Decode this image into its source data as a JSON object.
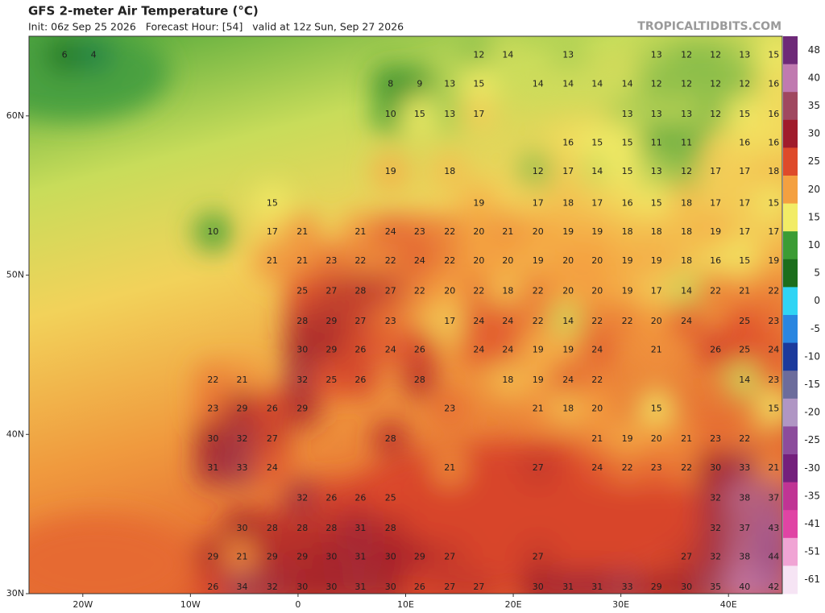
{
  "header": {
    "title": "GFS 2-meter Air Temperature (°C)",
    "subtitle": "Init: 06z Sep 25 2026   Forecast Hour: [54]   valid at 12z Sun, Sep 27 2026",
    "watermark": "TROPICALTIDBITS.COM"
  },
  "chart_data": {
    "type": "map",
    "xlim": [
      -25,
      45
    ],
    "ylim": [
      30,
      65
    ],
    "xticks": [
      {
        "value": -20,
        "label": "20W"
      },
      {
        "value": -10,
        "label": "10W"
      },
      0,
      {
        "value": 10,
        "label": "10E"
      },
      {
        "value": 20,
        "label": "20E"
      },
      {
        "value": 30,
        "label": "30E"
      },
      {
        "value": 40,
        "label": "40E"
      }
    ],
    "yticks": [
      {
        "value": 60,
        "label": "60N"
      },
      {
        "value": 50,
        "label": "50N"
      },
      {
        "value": 40,
        "label": "40N"
      },
      {
        "value": 30,
        "label": "30N"
      }
    ],
    "rows": [
      {
        "lat": 63.8,
        "lon": [
          -21.7,
          -19.0,
          16.8,
          19.5,
          25.1,
          33.3,
          36.1,
          38.8,
          41.5,
          44.2
        ],
        "values": [
          6,
          4,
          12,
          14,
          13,
          13,
          12,
          12,
          13,
          15
        ]
      },
      {
        "lat": 62.0,
        "lon": [
          8.6,
          11.3,
          14.1,
          16.8,
          22.3,
          25.1,
          27.8,
          30.6,
          33.3,
          36.1,
          38.8,
          41.5,
          44.2
        ],
        "values": [
          8,
          9,
          13,
          15,
          14,
          14,
          14,
          14,
          12,
          12,
          12,
          12,
          16
        ]
      },
      {
        "lat": 60.1,
        "lon": [
          8.6,
          11.3,
          14.1,
          16.8,
          30.6,
          33.3,
          36.1,
          38.8,
          41.5,
          44.2
        ],
        "values": [
          10,
          15,
          13,
          17,
          13,
          13,
          13,
          12,
          15,
          16
        ]
      },
      {
        "lat": 58.3,
        "lon": [
          25.1,
          27.8,
          30.6,
          33.3,
          36.1,
          41.5,
          44.2
        ],
        "values": [
          16,
          15,
          15,
          11,
          11,
          16,
          16
        ]
      },
      {
        "lat": 56.5,
        "lon": [
          8.6,
          14.1,
          22.3,
          25.1,
          27.8,
          30.6,
          33.3,
          36.1,
          38.8,
          41.5,
          44.2
        ],
        "values": [
          19,
          18,
          12,
          17,
          14,
          15,
          13,
          12,
          17,
          17,
          18
        ]
      },
      {
        "lat": 54.5,
        "lon": [
          -2.4,
          16.8,
          22.3,
          25.1,
          27.8,
          30.6,
          33.3,
          36.1,
          38.8,
          41.5,
          44.2
        ],
        "values": [
          15,
          19,
          17,
          18,
          17,
          16,
          15,
          18,
          17,
          17,
          15
        ]
      },
      {
        "lat": 52.7,
        "lon": [
          -7.9,
          -2.4,
          0.4,
          5.8,
          8.6,
          11.3,
          14.1,
          16.8,
          19.5,
          22.3,
          25.1,
          27.8,
          30.6,
          33.3,
          36.1,
          38.8,
          41.5,
          44.2
        ],
        "values": [
          10,
          17,
          21,
          21,
          24,
          23,
          22,
          20,
          21,
          20,
          19,
          19,
          18,
          18,
          18,
          19,
          17,
          17
        ]
      },
      {
        "lat": 50.9,
        "lon": [
          -2.4,
          0.4,
          3.1,
          5.8,
          8.6,
          11.3,
          14.1,
          16.8,
          19.5,
          22.3,
          25.1,
          27.8,
          30.6,
          33.3,
          36.1,
          38.8,
          41.5,
          44.2
        ],
        "values": [
          21,
          21,
          23,
          22,
          22,
          24,
          22,
          20,
          20,
          19,
          20,
          20,
          19,
          19,
          18,
          16,
          15,
          19
        ]
      },
      {
        "lat": 49.0,
        "lon": [
          0.4,
          3.1,
          5.8,
          8.6,
          11.3,
          14.1,
          16.8,
          19.5,
          22.3,
          25.1,
          27.8,
          30.6,
          33.3,
          36.1,
          38.8,
          41.5,
          44.2
        ],
        "values": [
          25,
          27,
          28,
          27,
          22,
          20,
          22,
          18,
          22,
          20,
          20,
          19,
          17,
          14,
          22,
          21,
          22
        ]
      },
      {
        "lat": 47.1,
        "lon": [
          0.4,
          3.1,
          5.8,
          8.6,
          14.1,
          16.8,
          19.5,
          22.3,
          25.1,
          27.8,
          30.6,
          33.3,
          36.1,
          41.5,
          44.2
        ],
        "values": [
          28,
          29,
          27,
          23,
          17,
          24,
          24,
          22,
          14,
          22,
          22,
          20,
          24,
          25,
          23
        ]
      },
      {
        "lat": 45.3,
        "lon": [
          0.4,
          3.1,
          5.8,
          8.6,
          11.3,
          16.8,
          19.5,
          22.3,
          25.1,
          27.8,
          33.3,
          38.8,
          41.5,
          44.2
        ],
        "values": [
          30,
          29,
          26,
          24,
          26,
          24,
          24,
          19,
          19,
          24,
          21,
          26,
          25,
          24
        ]
      },
      {
        "lat": 43.4,
        "lon": [
          -7.9,
          -5.2,
          0.4,
          3.1,
          5.8,
          11.3,
          19.5,
          22.3,
          25.1,
          27.8,
          41.5,
          44.2
        ],
        "values": [
          22,
          21,
          32,
          25,
          26,
          28,
          18,
          19,
          24,
          22,
          14,
          23
        ]
      },
      {
        "lat": 41.6,
        "lon": [
          -7.9,
          -5.2,
          -2.4,
          0.4,
          14.1,
          22.3,
          25.1,
          27.8,
          33.3,
          44.2
        ],
        "values": [
          23,
          29,
          26,
          29,
          23,
          21,
          18,
          20,
          15,
          15
        ]
      },
      {
        "lat": 39.7,
        "lon": [
          -7.9,
          -5.2,
          -2.4,
          8.6,
          27.8,
          30.6,
          33.3,
          36.1,
          38.8,
          41.5
        ],
        "values": [
          30,
          32,
          27,
          28,
          21,
          19,
          20,
          21,
          23,
          22
        ]
      },
      {
        "lat": 37.9,
        "lon": [
          -7.9,
          -5.2,
          -2.4,
          14.1,
          22.3,
          27.8,
          30.6,
          33.3,
          36.1,
          38.8,
          41.5,
          44.2
        ],
        "values": [
          31,
          33,
          24,
          21,
          27,
          24,
          22,
          23,
          22,
          30,
          33,
          21
        ]
      },
      {
        "lat": 36.0,
        "lon": [
          0.4,
          3.1,
          5.8,
          8.6,
          38.8,
          41.5,
          44.2
        ],
        "values": [
          32,
          26,
          26,
          25,
          32,
          38,
          37
        ]
      },
      {
        "lat": 34.1,
        "lon": [
          -5.2,
          -2.4,
          0.4,
          3.1,
          5.8,
          8.6,
          38.8,
          41.5,
          44.2
        ],
        "values": [
          30,
          28,
          28,
          28,
          31,
          28,
          32,
          37,
          43
        ]
      },
      {
        "lat": 32.3,
        "lon": [
          -7.9,
          -5.2,
          -2.4,
          0.4,
          3.1,
          5.8,
          8.6,
          11.3,
          14.1,
          22.3,
          36.1,
          38.8,
          41.5,
          44.2
        ],
        "values": [
          29,
          21,
          29,
          29,
          30,
          31,
          30,
          29,
          27,
          27,
          27,
          32,
          38,
          44
        ]
      },
      {
        "lat": 30.4,
        "lon": [
          -7.9,
          -5.2,
          -2.4,
          0.4,
          3.1,
          5.8,
          8.6,
          11.3,
          14.1,
          16.8,
          22.3,
          25.1,
          27.8,
          30.6,
          33.3,
          36.1,
          38.8,
          41.5,
          44.2
        ],
        "values": [
          26,
          34,
          32,
          30,
          30,
          31,
          30,
          26,
          27,
          27,
          30,
          31,
          31,
          33,
          29,
          30,
          35,
          40,
          42
        ]
      }
    ],
    "colorbar": {
      "labels": [
        48,
        40,
        35,
        30,
        25,
        20,
        15,
        10,
        5,
        0,
        -5,
        -10,
        -15,
        -20,
        -25,
        -30,
        -35,
        -41,
        -51,
        -61
      ],
      "colors": [
        "#6e2a78",
        "#c07ab0",
        "#a04860",
        "#a01c2c",
        "#de4a2a",
        "#f4a040",
        "#f2ec66",
        "#3c9c34",
        "#1c6e1c",
        "#30d4f4",
        "#2a86e0",
        "#1c3a9c",
        "#6c6c9c",
        "#b096c4",
        "#8c4c9c",
        "#74207c",
        "#c03494",
        "#e044a4",
        "#f0a4d4",
        "#f6e4f4"
      ]
    }
  }
}
